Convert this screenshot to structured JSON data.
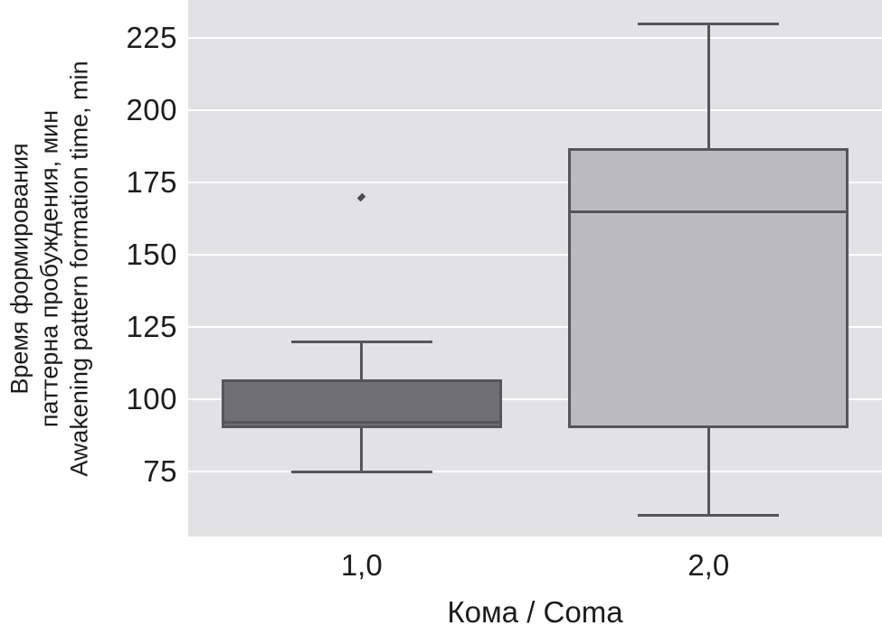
{
  "figure": {
    "background": "#ffffff",
    "plot_background": "#e2e2e4",
    "grid_color": "#ffffff",
    "stroke_color": "#55565a",
    "text_color": "#1c1c1c"
  },
  "chart_data": {
    "type": "box",
    "title": "",
    "xlabel": "Кома / Coma",
    "ylabel_lines": [
      "Время формирования",
      "паттерна пробуждения, мин",
      "Awakening pattern formation time, min"
    ],
    "categories": [
      "1,0",
      "2,0"
    ],
    "yticks": [
      75,
      100,
      125,
      150,
      175,
      200,
      225
    ],
    "ylim": [
      52.5,
      238.125
    ],
    "grid": "horizontal",
    "legend": "none",
    "series": [
      {
        "category": "1,0",
        "whisker_low": 75,
        "q1": 90,
        "median": 92,
        "q3": 107,
        "whisker_high": 120,
        "outliers": [
          170
        ],
        "box_fill": "#6f6f73"
      },
      {
        "category": "2,0",
        "whisker_low": 60,
        "q1": 90,
        "median": 165,
        "q3": 187,
        "whisker_high": 230,
        "outliers": [],
        "box_fill": "#bbbbbd"
      }
    ]
  }
}
